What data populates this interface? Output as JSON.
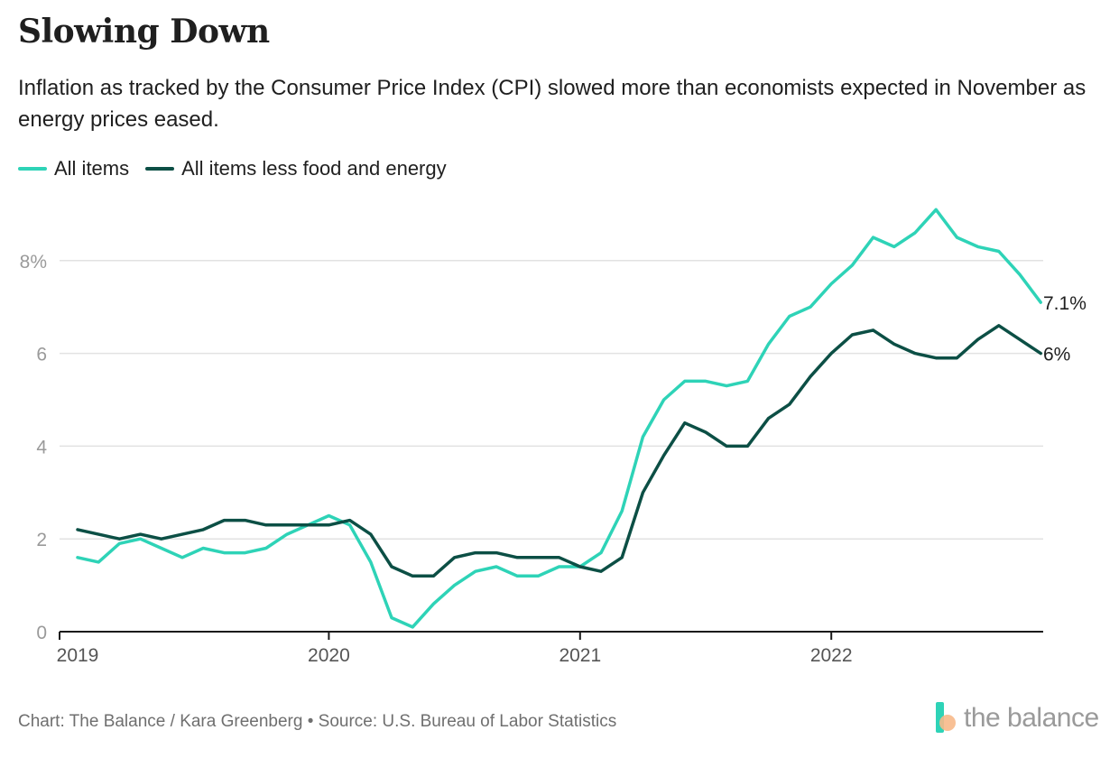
{
  "title": "Slowing Down",
  "subtitle": "Inflation as tracked by the Consumer Price Index (CPI) slowed more than economists expected in November as energy prices eased.",
  "footer": "Chart: The Balance / Kara Greenberg • Source: U.S. Bureau of Labor Statistics",
  "logo_text": "the balance",
  "colors": {
    "all_items": "#2ed3b7",
    "core": "#0c4f45",
    "grid": "#e2e2e2",
    "axis": "#1a1a1a",
    "tick_text": "#9a9a9a"
  },
  "chart_data": {
    "type": "line",
    "x_start": "2019-01",
    "x_end": "2022-11",
    "x_ticks": [
      {
        "date": "2019-01",
        "label": "2019"
      },
      {
        "date": "2020-01",
        "label": "2020"
      },
      {
        "date": "2021-01",
        "label": "2021"
      },
      {
        "date": "2022-01",
        "label": "2022"
      }
    ],
    "y_ticks": [
      {
        "value": 0,
        "label": "0"
      },
      {
        "value": 2,
        "label": "2"
      },
      {
        "value": 4,
        "label": "4"
      },
      {
        "value": 6,
        "label": "6"
      },
      {
        "value": 8,
        "label": "8%"
      }
    ],
    "ylim": [
      0,
      9.2
    ],
    "grid": true,
    "legend": "top-left",
    "series": [
      {
        "name": "All items",
        "color": "#2ed3b7",
        "end_label": "7.1%",
        "values": [
          1.6,
          1.5,
          1.9,
          2.0,
          1.8,
          1.6,
          1.8,
          1.7,
          1.7,
          1.8,
          2.1,
          2.3,
          2.5,
          2.3,
          1.5,
          0.3,
          0.1,
          0.6,
          1.0,
          1.3,
          1.4,
          1.2,
          1.2,
          1.4,
          1.4,
          1.7,
          2.6,
          4.2,
          5.0,
          5.4,
          5.4,
          5.3,
          5.4,
          6.2,
          6.8,
          7.0,
          7.5,
          7.9,
          8.5,
          8.3,
          8.6,
          9.1,
          8.5,
          8.3,
          8.2,
          7.7,
          7.1
        ]
      },
      {
        "name": "All items less food and energy",
        "color": "#0c4f45",
        "end_label": "6%",
        "values": [
          2.2,
          2.1,
          2.0,
          2.1,
          2.0,
          2.1,
          2.2,
          2.4,
          2.4,
          2.3,
          2.3,
          2.3,
          2.3,
          2.4,
          2.1,
          1.4,
          1.2,
          1.2,
          1.6,
          1.7,
          1.7,
          1.6,
          1.6,
          1.6,
          1.4,
          1.3,
          1.6,
          3.0,
          3.8,
          4.5,
          4.3,
          4.0,
          4.0,
          4.6,
          4.9,
          5.5,
          6.0,
          6.4,
          6.5,
          6.2,
          6.0,
          5.9,
          5.9,
          6.3,
          6.6,
          6.3,
          6.0
        ]
      }
    ]
  }
}
